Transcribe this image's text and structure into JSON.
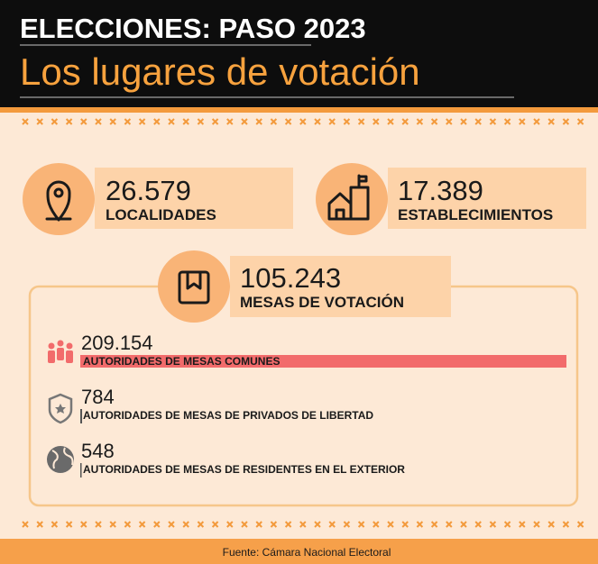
{
  "header": {
    "title": "ELECCIONES: PASO 2023",
    "subtitle": "Los lugares de votación"
  },
  "stats": [
    {
      "number": "26.579",
      "label": "LOCALIDADES"
    },
    {
      "number": "17.389",
      "label": "ESTABLECIMIENTOS"
    },
    {
      "number": "105.243",
      "label": "MESAS DE VOTACIÓN"
    }
  ],
  "authorities": [
    {
      "value": 209154,
      "label": "209.154",
      "caption": "AUTORIDADES DE MESAS COMUNES",
      "color": "#f26b6b"
    },
    {
      "value": 784,
      "label": "784",
      "caption": "AUTORIDADES DE MESAS DE PRIVADOS DE LIBERTAD",
      "color": "#555555"
    },
    {
      "value": 548,
      "label": "548",
      "caption": "AUTORIDADES DE MESAS DE RESIDENTES EN EL EXTERIOR",
      "color": "#555555"
    }
  ],
  "footer": {
    "source": "Fuente: Cámara Nacional Electoral"
  }
}
